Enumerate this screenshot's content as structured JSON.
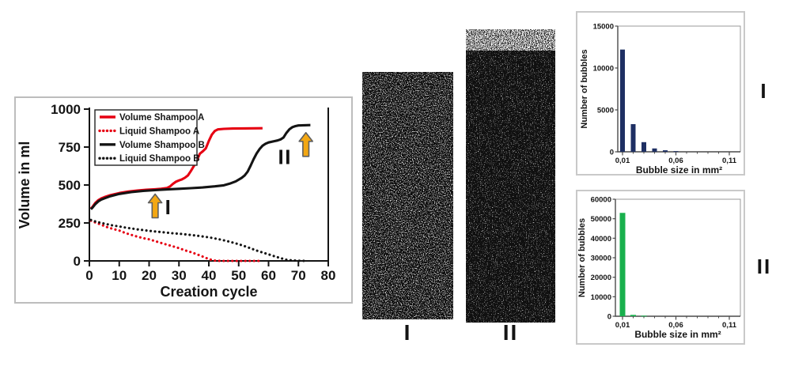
{
  "figure": {
    "foam_images": [
      {
        "label": "I",
        "description": "foam-texture-sample-1"
      },
      {
        "label": "II",
        "description": "foam-texture-sample-2"
      }
    ],
    "side_labels": [
      {
        "label": "I"
      },
      {
        "label": "II"
      }
    ]
  },
  "chart_data": [
    {
      "id": "volume-line-chart",
      "type": "line",
      "xlabel": "Creation cycle",
      "ylabel": "Volume in ml",
      "xlim": [
        0,
        80
      ],
      "ylim": [
        0,
        1000
      ],
      "x_ticks": [
        0,
        10,
        20,
        30,
        40,
        50,
        60,
        70,
        80
      ],
      "y_ticks": [
        0,
        250,
        500,
        750,
        1000
      ],
      "grid": false,
      "legend_position": "top-left",
      "arrow_color": "#f3a712",
      "series": [
        {
          "name": "Volume Shampoo A",
          "color": "#e60012",
          "style": "solid",
          "points": [
            [
              0.5,
              345
            ],
            [
              1,
              355
            ],
            [
              2,
              382
            ],
            [
              3,
              400
            ],
            [
              4,
              412
            ],
            [
              5,
              420
            ],
            [
              7,
              433
            ],
            [
              10,
              447
            ],
            [
              13,
              457
            ],
            [
              16,
              463
            ],
            [
              19,
              468
            ],
            [
              22,
              472
            ],
            [
              24,
              475
            ],
            [
              26,
              480
            ],
            [
              27,
              490
            ],
            [
              28,
              508
            ],
            [
              29,
              522
            ],
            [
              30,
              530
            ],
            [
              31,
              537
            ],
            [
              32,
              548
            ],
            [
              33,
              563
            ],
            [
              34,
              592
            ],
            [
              35,
              625
            ],
            [
              36,
              663
            ],
            [
              36.5,
              685
            ],
            [
              37,
              707
            ],
            [
              38,
              722
            ],
            [
              39,
              741
            ],
            [
              40,
              790
            ],
            [
              41,
              832
            ],
            [
              42,
              856
            ],
            [
              43,
              866
            ],
            [
              45,
              870
            ],
            [
              48,
              872
            ],
            [
              52,
              873
            ],
            [
              58,
              874
            ]
          ]
        },
        {
          "name": "Liquid Shampoo A",
          "color": "#e60012",
          "style": "dotted",
          "points": [
            [
              0.5,
              265
            ],
            [
              2,
              253
            ],
            [
              4,
              238
            ],
            [
              6,
              222
            ],
            [
              8,
              210
            ],
            [
              10,
              200
            ],
            [
              12,
              184
            ],
            [
              14,
              172
            ],
            [
              16,
              160
            ],
            [
              18,
              150
            ],
            [
              20,
              142
            ],
            [
              22,
              130
            ],
            [
              24,
              118
            ],
            [
              26,
              107
            ],
            [
              28,
              96
            ],
            [
              30,
              84
            ],
            [
              32,
              70
            ],
            [
              34,
              58
            ],
            [
              36,
              44
            ],
            [
              38,
              28
            ],
            [
              40,
              12
            ],
            [
              41,
              6
            ],
            [
              42,
              2
            ],
            [
              44,
              0
            ],
            [
              48,
              0
            ],
            [
              52,
              0
            ],
            [
              56,
              0
            ],
            [
              58,
              0
            ]
          ]
        },
        {
          "name": "Volume Shampoo B",
          "color": "#141414",
          "style": "solid",
          "points": [
            [
              0.5,
              340
            ],
            [
              1,
              350
            ],
            [
              2,
              374
            ],
            [
              3,
              392
            ],
            [
              4,
              404
            ],
            [
              5,
              412
            ],
            [
              7,
              426
            ],
            [
              10,
              441
            ],
            [
              14,
              453
            ],
            [
              18,
              461
            ],
            [
              22,
              466
            ],
            [
              26,
              471
            ],
            [
              30,
              475
            ],
            [
              34,
              479
            ],
            [
              38,
              484
            ],
            [
              42,
              491
            ],
            [
              45,
              498
            ],
            [
              47,
              509
            ],
            [
              49,
              524
            ],
            [
              51,
              547
            ],
            [
              52,
              563
            ],
            [
              53,
              588
            ],
            [
              54,
              628
            ],
            [
              55,
              670
            ],
            [
              56,
              708
            ],
            [
              57,
              737
            ],
            [
              58,
              759
            ],
            [
              59,
              772
            ],
            [
              60,
              780
            ],
            [
              62,
              789
            ],
            [
              63,
              793
            ],
            [
              64,
              800
            ],
            [
              65,
              813
            ],
            [
              66,
              843
            ],
            [
              67,
              867
            ],
            [
              68,
              881
            ],
            [
              69,
              888
            ],
            [
              70,
              892
            ],
            [
              72,
              894
            ],
            [
              74,
              895
            ]
          ]
        },
        {
          "name": "Liquid Shampoo B",
          "color": "#141414",
          "style": "dotted",
          "points": [
            [
              0.5,
              270
            ],
            [
              2,
              260
            ],
            [
              4,
              250
            ],
            [
              6,
              241
            ],
            [
              8,
              233
            ],
            [
              10,
              227
            ],
            [
              12,
              220
            ],
            [
              14,
              214
            ],
            [
              16,
              208
            ],
            [
              18,
              203
            ],
            [
              20,
              198
            ],
            [
              22,
              194
            ],
            [
              24,
              190
            ],
            [
              26,
              186
            ],
            [
              28,
              182
            ],
            [
              30,
              179
            ],
            [
              32,
              175
            ],
            [
              34,
              171
            ],
            [
              36,
              166
            ],
            [
              38,
              161
            ],
            [
              40,
              155
            ],
            [
              42,
              148
            ],
            [
              44,
              140
            ],
            [
              46,
              131
            ],
            [
              48,
              121
            ],
            [
              50,
              110
            ],
            [
              52,
              97
            ],
            [
              54,
              83
            ],
            [
              56,
              68
            ],
            [
              58,
              55
            ],
            [
              60,
              43
            ],
            [
              62,
              30
            ],
            [
              64,
              18
            ],
            [
              66,
              8
            ],
            [
              68,
              3
            ],
            [
              70,
              1
            ],
            [
              72,
              0
            ]
          ]
        }
      ],
      "annotations": [
        {
          "label": "I",
          "arrow_cycle": 22,
          "arrow_tip_ml": 440,
          "text_cycle": 26.5,
          "text_ml": 355
        },
        {
          "label": "II",
          "arrow_cycle": 72.5,
          "arrow_tip_ml": 845,
          "text_cycle": 65.5,
          "text_ml": 685
        }
      ]
    },
    {
      "id": "bubble-histogram-1",
      "type": "bar",
      "panel_label": "I",
      "xlabel": "Bubble size in mm²",
      "ylabel": "Number of bubbles",
      "bar_color": "#1e2f63",
      "x": [
        0.01,
        0.02,
        0.03,
        0.04,
        0.05,
        0.06,
        0.07,
        0.08,
        0.09,
        0.1,
        0.11
      ],
      "values": [
        12200,
        3300,
        1150,
        400,
        180,
        80,
        0,
        0,
        0,
        0,
        0
      ],
      "x_tick_labels": [
        "0,01",
        "0,06",
        "0,11"
      ],
      "x_tick_positions": [
        0.01,
        0.06,
        0.11
      ],
      "y_ticks": [
        0,
        5000,
        10000,
        15000
      ],
      "ylim": [
        0,
        15000
      ],
      "grid": false
    },
    {
      "id": "bubble-histogram-2",
      "type": "bar",
      "panel_label": "II",
      "xlabel": "Bubble size in mm²",
      "ylabel": "Number of bubbles",
      "bar_color": "#19b04d",
      "x": [
        0.01,
        0.02,
        0.03,
        0.04,
        0.05,
        0.06,
        0.07,
        0.08,
        0.09,
        0.1,
        0.11
      ],
      "values": [
        53000,
        700,
        300,
        0,
        0,
        0,
        0,
        0,
        0,
        0,
        0
      ],
      "x_tick_labels": [
        "0,01",
        "0,06",
        "0,11"
      ],
      "x_tick_positions": [
        0.01,
        0.06,
        0.11
      ],
      "y_ticks": [
        0,
        10000,
        20000,
        30000,
        40000,
        50000,
        60000
      ],
      "ylim": [
        0,
        60000
      ],
      "grid": false
    }
  ]
}
